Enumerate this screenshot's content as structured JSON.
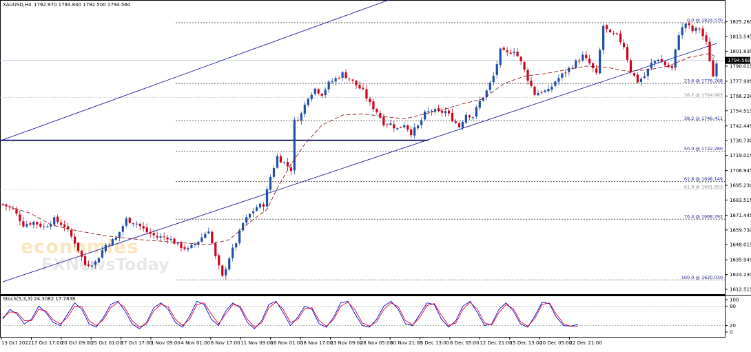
{
  "chart_data": [
    {
      "type": "candlestick",
      "header": {
        "symbol": "XAUUSD,H4",
        "ohlc": "1792.970 1794.840 1792.500 1794.560"
      },
      "ylim": [
        1612.515,
        1836.0
      ],
      "y_ticks": [
        "1825.260",
        "1813.545",
        "1801.830",
        "1790.015",
        "1777.995",
        "1766.230",
        "1754.515",
        "1742.445",
        "1730.730",
        "1719.015",
        "1706.945",
        "1695.230",
        "1683.515",
        "1671.445",
        "1659.730",
        "1648.015",
        "1635.945",
        "1624.230",
        "1612.515"
      ],
      "current_price": "1794.560",
      "x_labels": [
        "13 Oct 2022",
        "17 Oct 17:00",
        "20 Oct 09:00",
        "25 Oct 01:00",
        "27 Oct 17:00",
        "1 Nov 09:00",
        "4 Nov 01:00",
        "8 Nov 17:00",
        "11 Nov 09:00",
        "16 Nov 01:00",
        "18 Nov 17:00",
        "23 Nov 09:00",
        "28 Nov 05:00",
        "30 Nov 21:00",
        "5 Dec 13:00",
        "8 Dec 05:00",
        "12 Dec 21:00",
        "15 Dec 13:00",
        "20 Dec 05:00",
        "22 Dec 21:00"
      ],
      "fib_levels": [
        {
          "label": "0.0 @ 1824.530",
          "value": 1824.53,
          "style": "navy"
        },
        {
          "label": "23.6 @ 1776.268",
          "value": 1776.268,
          "style": "navy"
        },
        {
          "label": "38.2 @ 1764.983",
          "value": 1764.983,
          "style": "gray"
        },
        {
          "label": "38.2 @ 1746.411",
          "value": 1746.411,
          "style": "navy"
        },
        {
          "label": "50.0 @ 1722.280",
          "value": 1722.28,
          "style": "navy"
        },
        {
          "label": "61.8 @ 1698.149",
          "value": 1698.149,
          "style": "navy"
        },
        {
          "label": "61.8 @ 1691.853",
          "value": 1691.853,
          "style": "gray"
        },
        {
          "label": "76.4 @ 1668.292",
          "value": 1668.292,
          "style": "navy"
        },
        {
          "label": "100.0 @ 1620.030",
          "value": 1620.03,
          "style": "navy"
        }
      ],
      "support_line_value": 1731.0,
      "channel": {
        "lower": [
          {
            "bar": 0,
            "value": 1618.5
          },
          {
            "bar": 208,
            "value": 1808.0
          }
        ],
        "upper": [
          {
            "bar": -60,
            "value": 1672.0
          },
          {
            "bar": 122,
            "value": 1852.0
          }
        ]
      },
      "ma_points": [
        [
          0,
          1680
        ],
        [
          8,
          1673
        ],
        [
          14,
          1664
        ],
        [
          20,
          1660
        ],
        [
          30,
          1655
        ],
        [
          40,
          1652
        ],
        [
          50,
          1650
        ],
        [
          60,
          1648
        ],
        [
          66,
          1652
        ],
        [
          72,
          1666
        ],
        [
          77,
          1676
        ],
        [
          80,
          1693
        ],
        [
          84,
          1712
        ],
        [
          88,
          1728
        ],
        [
          93,
          1743
        ],
        [
          99,
          1751
        ],
        [
          105,
          1752
        ],
        [
          111,
          1750
        ],
        [
          117,
          1748
        ],
        [
          123,
          1752
        ],
        [
          129,
          1756
        ],
        [
          134,
          1760
        ],
        [
          140,
          1764
        ],
        [
          146,
          1776
        ],
        [
          152,
          1782
        ],
        [
          158,
          1784
        ],
        [
          164,
          1787
        ],
        [
          170,
          1790
        ],
        [
          176,
          1789
        ],
        [
          182,
          1786
        ],
        [
          188,
          1787
        ],
        [
          194,
          1790
        ],
        [
          200,
          1797
        ],
        [
          206,
          1800
        ],
        [
          208,
          1797
        ]
      ],
      "candles_note": "price path of XAUUSD 4H candles",
      "path": [
        [
          0,
          1680
        ],
        [
          3,
          1676
        ],
        [
          6,
          1664
        ],
        [
          9,
          1666
        ],
        [
          12,
          1662
        ],
        [
          15,
          1668
        ],
        [
          18,
          1663
        ],
        [
          21,
          1650
        ],
        [
          24,
          1632
        ],
        [
          27,
          1634
        ],
        [
          30,
          1648
        ],
        [
          33,
          1653
        ],
        [
          36,
          1668
        ],
        [
          39,
          1665
        ],
        [
          42,
          1658
        ],
        [
          45,
          1654
        ],
        [
          48,
          1654
        ],
        [
          51,
          1648
        ],
        [
          54,
          1644
        ],
        [
          57,
          1651
        ],
        [
          60,
          1660
        ],
        [
          62,
          1638
        ],
        [
          64,
          1622
        ],
        [
          66,
          1638
        ],
        [
          68,
          1650
        ],
        [
          70,
          1665
        ],
        [
          72,
          1672
        ],
        [
          74,
          1678
        ],
        [
          76,
          1680
        ],
        [
          78,
          1702
        ],
        [
          80,
          1718
        ],
        [
          82,
          1713
        ],
        [
          84,
          1708
        ],
        [
          85,
          1746
        ],
        [
          87,
          1752
        ],
        [
          89,
          1766
        ],
        [
          91,
          1772
        ],
        [
          93,
          1768
        ],
        [
          95,
          1776
        ],
        [
          97,
          1780
        ],
        [
          99,
          1784
        ],
        [
          101,
          1780
        ],
        [
          103,
          1775
        ],
        [
          105,
          1770
        ],
        [
          107,
          1760
        ],
        [
          109,
          1754
        ],
        [
          111,
          1745
        ],
        [
          113,
          1744
        ],
        [
          115,
          1740
        ],
        [
          117,
          1744
        ],
        [
          119,
          1737
        ],
        [
          121,
          1742
        ],
        [
          123,
          1752
        ],
        [
          125,
          1755
        ],
        [
          127,
          1753
        ],
        [
          129,
          1754
        ],
        [
          131,
          1748
        ],
        [
          133,
          1742
        ],
        [
          135,
          1752
        ],
        [
          137,
          1750
        ],
        [
          139,
          1762
        ],
        [
          141,
          1770
        ],
        [
          143,
          1782
        ],
        [
          145,
          1802
        ],
        [
          147,
          1800
        ],
        [
          149,
          1803
        ],
        [
          151,
          1793
        ],
        [
          153,
          1780
        ],
        [
          155,
          1768
        ],
        [
          157,
          1770
        ],
        [
          159,
          1770
        ],
        [
          161,
          1778
        ],
        [
          163,
          1783
        ],
        [
          165,
          1788
        ],
        [
          167,
          1793
        ],
        [
          169,
          1798
        ],
        [
          171,
          1792
        ],
        [
          173,
          1783
        ],
        [
          175,
          1822
        ],
        [
          177,
          1815
        ],
        [
          179,
          1814
        ],
        [
          181,
          1806
        ],
        [
          183,
          1786
        ],
        [
          185,
          1778
        ],
        [
          187,
          1782
        ],
        [
          189,
          1792
        ],
        [
          191,
          1796
        ],
        [
          193,
          1791
        ],
        [
          195,
          1788
        ],
        [
          197,
          1816
        ],
        [
          199,
          1824
        ],
        [
          201,
          1818
        ],
        [
          203,
          1820
        ],
        [
          205,
          1808
        ],
        [
          207,
          1782
        ],
        [
          208,
          1794
        ]
      ],
      "watermark": [
        "economies",
        "FXNewsToday"
      ]
    },
    {
      "type": "line",
      "title": "Stoch(5,3,3) 24.3082 17.7838",
      "ylim": [
        0,
        100
      ],
      "y_ticks": [
        "100",
        "80",
        "20",
        "0"
      ],
      "series": [
        {
          "color": "#0000c8",
          "values": [
            40,
            70,
            55,
            25,
            40,
            80,
            60,
            30,
            20,
            55,
            90,
            70,
            25,
            15,
            45,
            85,
            95,
            65,
            25,
            10,
            30,
            75,
            90,
            70,
            30,
            15,
            50,
            95,
            85,
            40,
            20,
            65,
            90,
            75,
            30,
            10,
            35,
            85,
            95,
            60,
            20,
            45,
            80,
            70,
            25,
            15,
            45,
            90,
            95,
            55,
            20,
            15,
            40,
            80,
            95,
            70,
            25,
            20,
            55,
            90,
            85,
            40,
            15,
            35,
            80,
            95,
            60,
            20,
            25,
            70,
            90,
            65,
            25,
            15,
            50,
            92,
            88,
            45,
            20,
            18,
            24
          ]
        },
        {
          "color": "#e0002c",
          "values": [
            45,
            62,
            60,
            35,
            35,
            70,
            65,
            38,
            25,
            45,
            80,
            78,
            35,
            20,
            38,
            75,
            92,
            75,
            35,
            15,
            25,
            65,
            85,
            78,
            40,
            20,
            40,
            85,
            90,
            55,
            25,
            55,
            85,
            80,
            40,
            15,
            28,
            75,
            92,
            70,
            30,
            38,
            72,
            75,
            35,
            18,
            38,
            80,
            92,
            68,
            28,
            18,
            32,
            70,
            90,
            78,
            35,
            22,
            45,
            82,
            88,
            52,
            20,
            28,
            70,
            92,
            70,
            28,
            22,
            60,
            85,
            72,
            32,
            18,
            42,
            85,
            90,
            55,
            25,
            18,
            18
          ]
        }
      ]
    }
  ]
}
